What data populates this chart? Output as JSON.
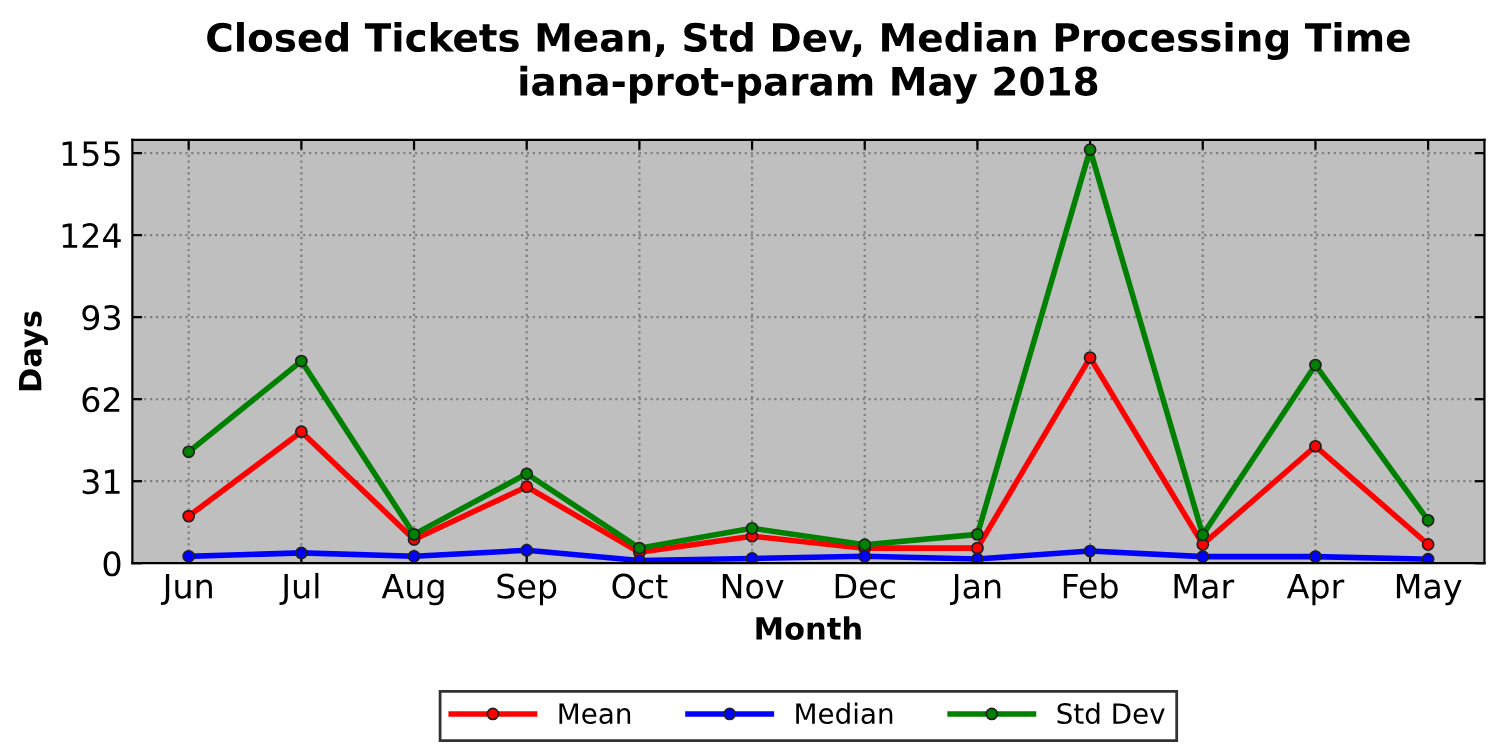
{
  "chart_data": {
    "type": "line",
    "title": "Closed Tickets Mean, Std Dev, Median Processing Time\niana-prot-param May 2018",
    "xlabel": "Month",
    "ylabel": "Days",
    "categories": [
      "Jun",
      "Jul",
      "Aug",
      "Sep",
      "Oct",
      "Nov",
      "Dec",
      "Jan",
      "Feb",
      "Mar",
      "Apr",
      "May"
    ],
    "series": [
      {
        "name": "Mean",
        "color": "#ff0000",
        "values": [
          17.8,
          49.7,
          9.0,
          28.9,
          4.1,
          10.2,
          5.7,
          5.7,
          77.7,
          7.1,
          44.2,
          7.1
        ]
      },
      {
        "name": "Median",
        "color": "#0000ff",
        "values": [
          2.6,
          3.9,
          2.6,
          4.9,
          1.0,
          1.8,
          2.6,
          1.6,
          4.6,
          2.5,
          2.5,
          1.5
        ]
      },
      {
        "name": "Std Dev",
        "color": "#008000",
        "values": [
          42.1,
          76.4,
          10.9,
          33.8,
          5.7,
          13.2,
          7.0,
          10.9,
          156.3,
          10.7,
          74.9,
          16.2
        ]
      }
    ],
    "ylim": [
      0,
      160
    ],
    "yticks": [
      0,
      31,
      62,
      93,
      124,
      155
    ],
    "grid": true,
    "legend": "bottom",
    "marker": "circle",
    "line_style": "solid"
  }
}
